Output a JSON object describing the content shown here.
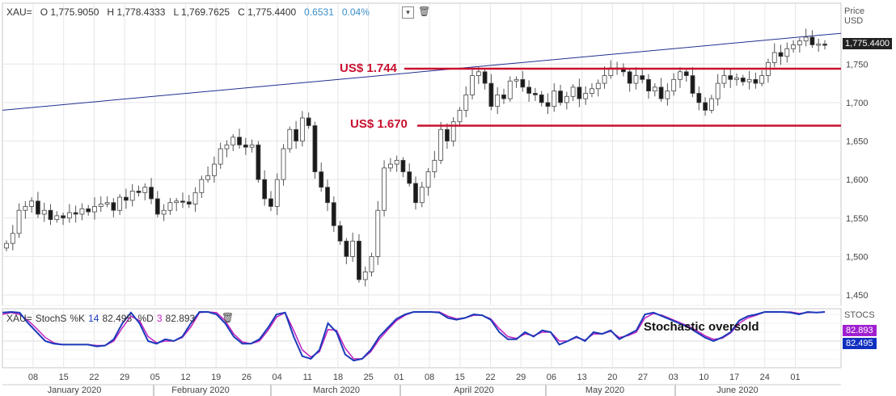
{
  "header": {
    "symbol": "XAU=",
    "open": "O 1,775.9050",
    "high": "H 1,778.4333",
    "low": "L 1,769.7625",
    "close": "C 1,775.4400",
    "change": "0.6531",
    "change_pct": "0.04%",
    "dropdown_icon": "chevron-down-icon",
    "delete_icon": "trash-icon"
  },
  "price_axis": {
    "title_line1": "Price",
    "title_line2": "USD",
    "last_price": "1,775.4400"
  },
  "stoch_header": {
    "symbol": "XAU=",
    "name": "StochS",
    "k_label": "%K",
    "k_period": "14",
    "k_value": "82.495",
    "d_label": "%D",
    "d_period": "3",
    "d_value": "82.893",
    "delete_icon": "trash-icon"
  },
  "stoch_axis": {
    "title": "STOCS",
    "d_tag": "82.893",
    "k_tag": "82.495"
  },
  "annotations": {
    "resistance_label": "US$ 1.744",
    "support_label": "US$ 1.670",
    "stoch_note": "Stochastic oversold"
  },
  "colors": {
    "up_candle": "#ffffff",
    "down_candle": "#1a1a1a",
    "level_line": "#c8102e",
    "trend_line": "#1f2f8f",
    "stoch_k": "#1a3ab8",
    "stoch_d": "#c020c0",
    "d_tag": "#a020d0",
    "k_tag": "#1030c0"
  },
  "chart_data": [
    {
      "type": "candlestick",
      "title": "",
      "ylabel": "Price USD",
      "ylim": [
        1450,
        1800
      ],
      "yticks": [
        1450,
        1500,
        1550,
        1600,
        1650,
        1700,
        1750
      ],
      "ytick_labels": [
        "1,450",
        "1,500",
        "1,550",
        "1,600",
        "1,650",
        "1,700",
        "1,750"
      ],
      "x_day_labels": [
        "08",
        "15",
        "22",
        "29",
        "05",
        "12",
        "19",
        "26",
        "04",
        "11",
        "18",
        "25",
        "01",
        "08",
        "15",
        "22",
        "29",
        "06",
        "13",
        "20",
        "27",
        "03",
        "10",
        "17",
        "24",
        "01"
      ],
      "x_month_labels": [
        "January 2020",
        "February 2020",
        "March 2020",
        "April 2020",
        "May 2020",
        "June 2020"
      ],
      "horizontal_levels": [
        1744,
        1670
      ],
      "trend_line": {
        "start": [
          "2020-01-01",
          1690
        ],
        "end": [
          "2020-07-07",
          1790
        ]
      },
      "grid": true,
      "closes": [
        1517,
        1530,
        1560,
        1565,
        1572,
        1555,
        1560,
        1548,
        1553,
        1550,
        1557,
        1555,
        1562,
        1558,
        1565,
        1568,
        1570,
        1560,
        1577,
        1573,
        1585,
        1583,
        1590,
        1575,
        1555,
        1560,
        1570,
        1572,
        1571,
        1568,
        1583,
        1600,
        1605,
        1620,
        1640,
        1645,
        1655,
        1645,
        1642,
        1645,
        1600,
        1575,
        1565,
        1600,
        1640,
        1665,
        1650,
        1680,
        1670,
        1610,
        1590,
        1570,
        1540,
        1520,
        1500,
        1520,
        1470,
        1480,
        1500,
        1560,
        1615,
        1620,
        1625,
        1610,
        1595,
        1570,
        1590,
        1610,
        1625,
        1665,
        1650,
        1675,
        1690,
        1710,
        1735,
        1740,
        1725,
        1695,
        1710,
        1705,
        1728,
        1730,
        1720,
        1712,
        1710,
        1700,
        1695,
        1715,
        1700,
        1708,
        1720,
        1705,
        1712,
        1718,
        1725,
        1735,
        1745,
        1745,
        1740,
        1725,
        1735,
        1730,
        1715,
        1720,
        1705,
        1715,
        1730,
        1740,
        1735,
        1712,
        1700,
        1690,
        1705,
        1725,
        1735,
        1730,
        1732,
        1727,
        1730,
        1725,
        1735,
        1752,
        1765,
        1760,
        1770,
        1775,
        1780,
        1785,
        1775,
        1776,
        1775
      ]
    },
    {
      "type": "line",
      "title": "",
      "ylabel": "STOCS",
      "ylim": [
        0,
        100
      ],
      "yticks": [
        50
      ],
      "series": [
        {
          "name": "%K",
          "values": [
            82,
            83,
            82,
            70,
            60,
            50,
            47,
            46,
            46,
            46,
            46,
            44,
            45,
            52,
            70,
            82,
            70,
            50,
            47,
            52,
            50,
            55,
            70,
            85,
            87,
            80,
            70,
            55,
            47,
            47,
            52,
            65,
            80,
            82,
            55,
            33,
            30,
            40,
            70,
            60,
            35,
            28,
            30,
            40,
            55,
            65,
            75,
            80,
            85,
            86,
            86,
            82,
            76,
            74,
            76,
            80,
            79,
            74,
            60,
            52,
            52,
            60,
            55,
            62,
            60,
            46,
            50,
            55,
            50,
            60,
            58,
            62,
            52,
            57,
            62,
            80,
            82,
            78,
            74,
            70,
            66,
            60,
            54,
            50,
            54,
            60,
            73,
            78,
            80,
            84,
            86,
            83,
            82,
            80,
            83,
            82,
            83
          ]
        },
        {
          "name": "%D",
          "values": [
            80,
            82,
            80,
            73,
            64,
            54,
            48,
            46,
            46,
            46,
            46,
            45,
            45,
            50,
            65,
            78,
            73,
            55,
            48,
            50,
            50,
            54,
            66,
            82,
            87,
            82,
            73,
            58,
            49,
            47,
            50,
            62,
            77,
            82,
            62,
            40,
            32,
            38,
            63,
            62,
            42,
            30,
            30,
            38,
            52,
            63,
            73,
            79,
            84,
            86,
            86,
            83,
            78,
            75,
            76,
            79,
            79,
            75,
            64,
            55,
            53,
            58,
            56,
            60,
            60,
            50,
            50,
            54,
            51,
            58,
            58,
            61,
            54,
            56,
            60,
            76,
            81,
            79,
            75,
            71,
            67,
            62,
            56,
            52,
            53,
            59,
            70,
            76,
            79,
            83,
            85,
            84,
            83,
            81,
            82,
            82,
            83
          ]
        }
      ]
    }
  ]
}
